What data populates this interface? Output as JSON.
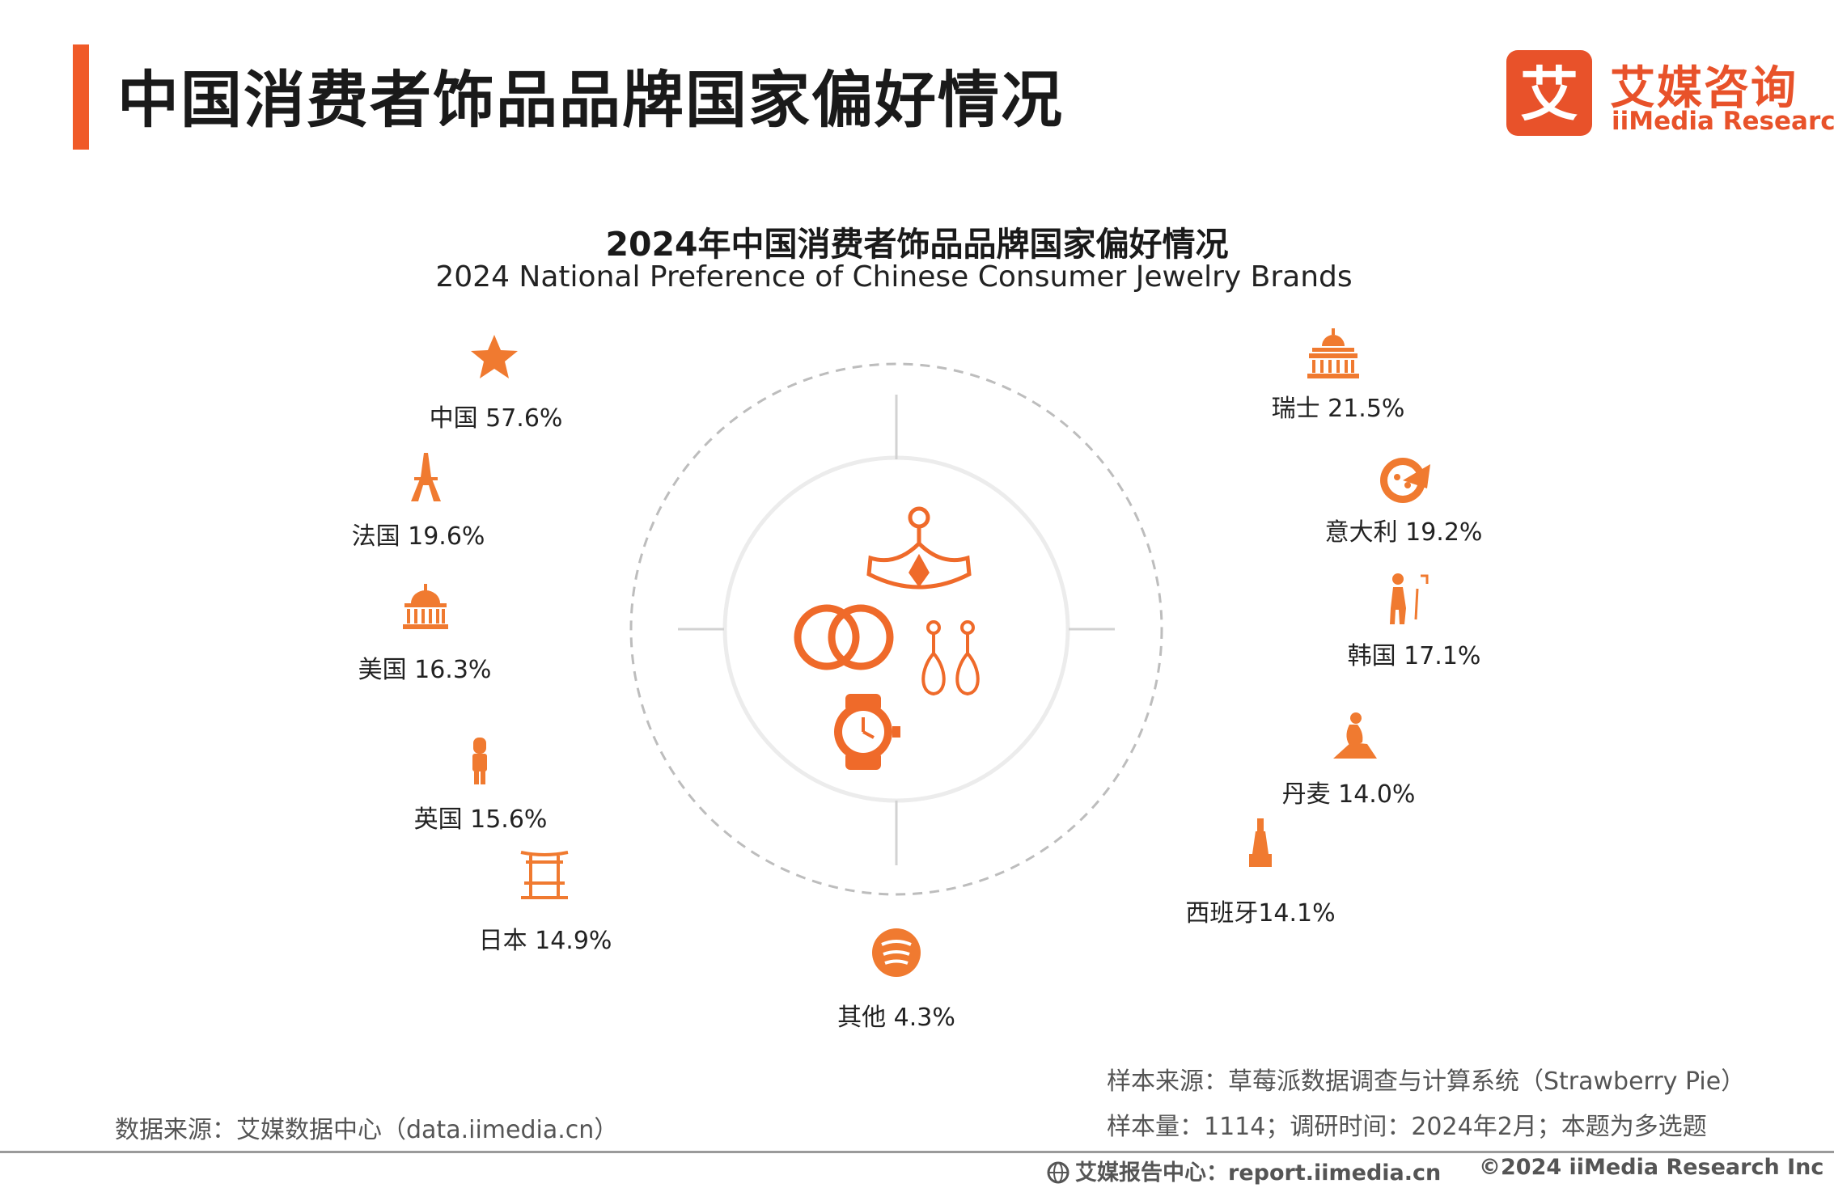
{
  "header": {
    "title": "中国消费者饰品品牌国家偏好情况",
    "logo_cn": "艾媒咨询",
    "logo_en": "iiMedia Research",
    "logo_mark": "艾"
  },
  "chart_data": {
    "type": "radial-icon-labels",
    "title": "2024年中国消费者饰品品牌国家偏好情况",
    "subtitle": "2024 National Preference of Chinese Consumer Jewelry Brands",
    "unit": "%",
    "points": [
      {
        "category": "中国",
        "value": 57.6,
        "label": "中国 57.6%",
        "icon": "star-icon"
      },
      {
        "category": "法国",
        "value": 19.6,
        "label": "法国 19.6%",
        "icon": "eiffel-tower-icon"
      },
      {
        "category": "美国",
        "value": 16.3,
        "label": "美国 16.3%",
        "icon": "capitol-icon"
      },
      {
        "category": "英国",
        "value": 15.6,
        "label": "英国 15.6%",
        "icon": "royal-guard-icon"
      },
      {
        "category": "日本",
        "value": 14.9,
        "label": "日本 14.9%",
        "icon": "torii-gate-icon"
      },
      {
        "category": "其他",
        "value": 4.3,
        "label": "其他 4.3%",
        "icon": "other-icon"
      },
      {
        "category": "西班牙",
        "value": 14.1,
        "label": "西班牙14.1%",
        "icon": "statue-icon"
      },
      {
        "category": "丹麦",
        "value": 14.0,
        "label": "丹麦 14.0%",
        "icon": "little-mermaid-icon"
      },
      {
        "category": "韩国",
        "value": 17.1,
        "label": "韩国 17.1%",
        "icon": "dancer-icon"
      },
      {
        "category": "意大利",
        "value": 19.2,
        "label": "意大利 19.2%",
        "icon": "pizza-icon"
      },
      {
        "category": "瑞士",
        "value": 21.5,
        "label": "瑞士 21.5%",
        "icon": "parliament-icon"
      }
    ],
    "accent_color": "#f07a30"
  },
  "footer": {
    "source_left": "数据来源：艾媒数据中心（data.iimedia.cn）",
    "sample_source": "样本来源：草莓派数据调查与计算系统（Strawberry Pie）",
    "sample_info": "样本量：1114；调研时间：2024年2月；本题为多选题",
    "site": "艾媒报告中心：report.iimedia.cn",
    "copyright": "©2024  iiMedia Research  Inc"
  }
}
